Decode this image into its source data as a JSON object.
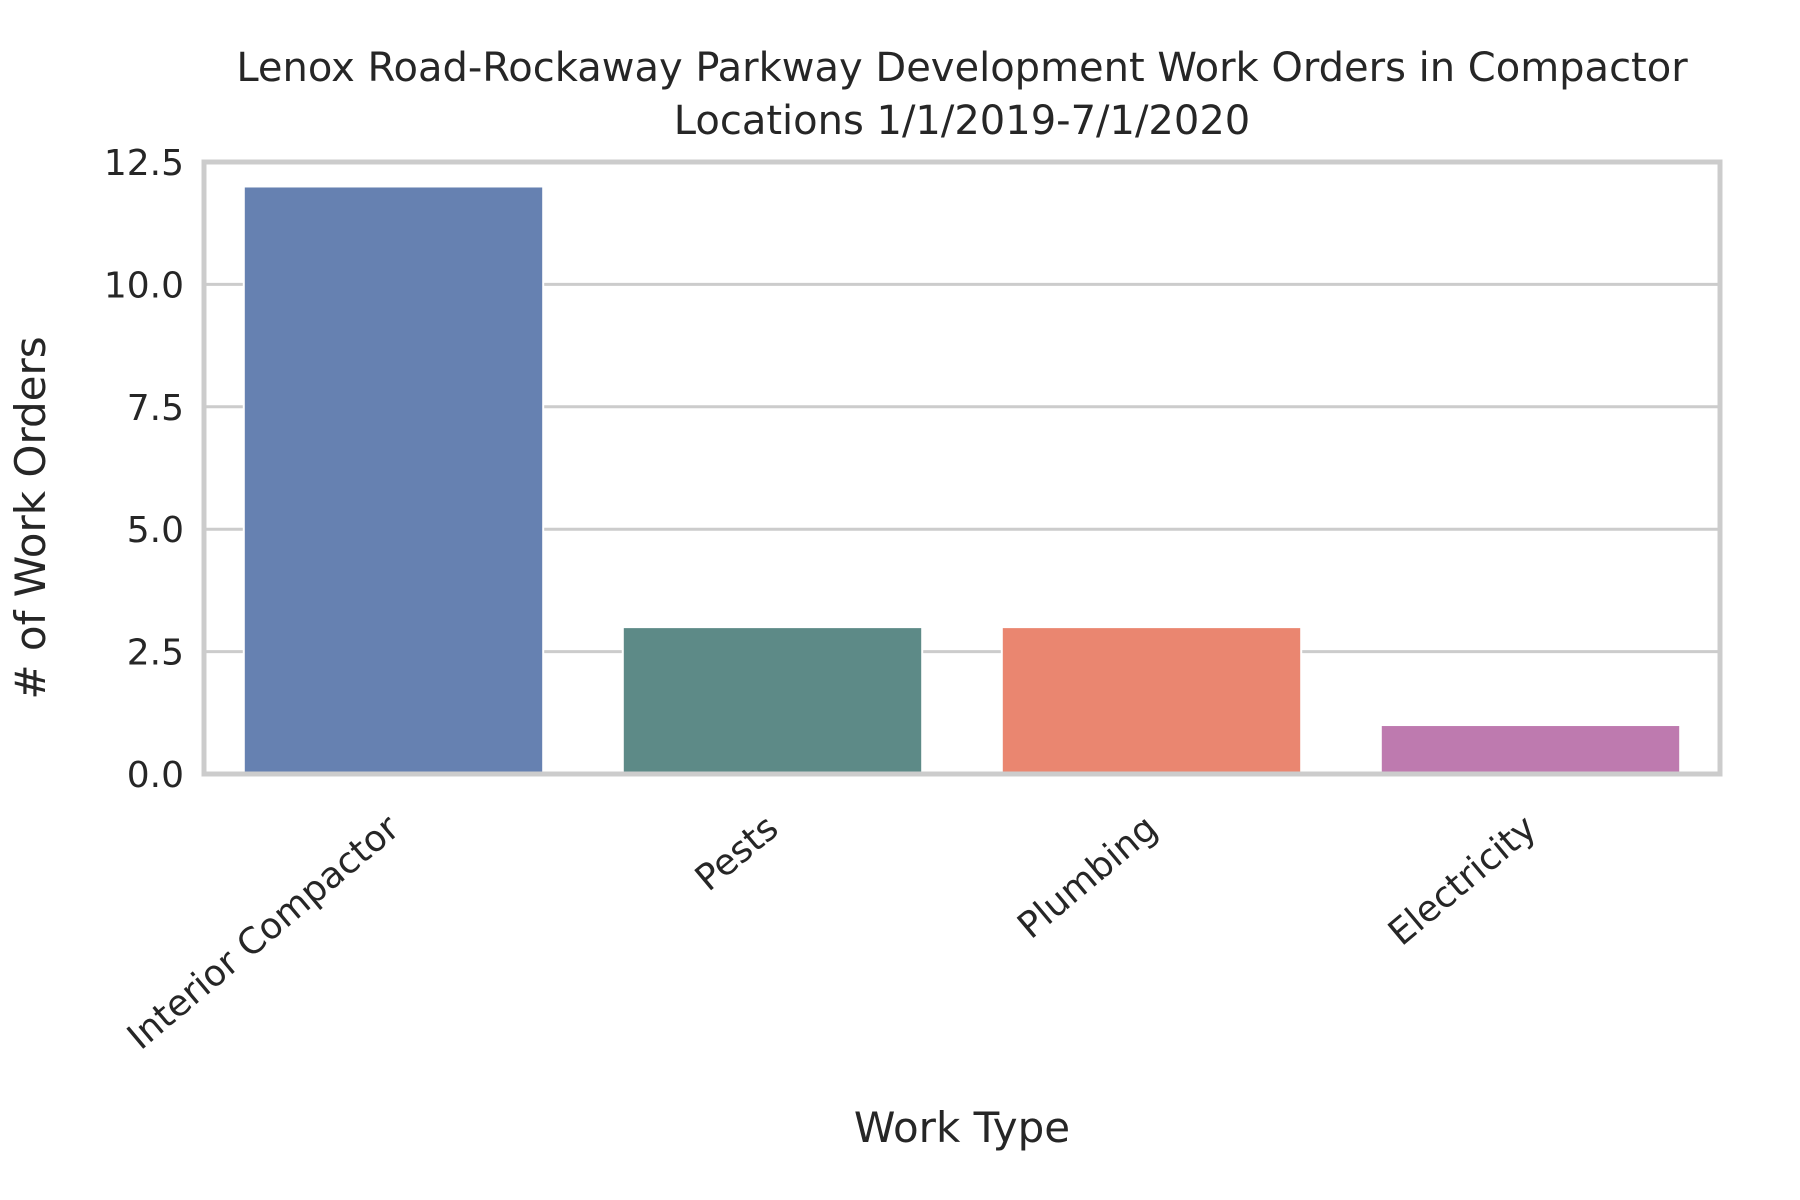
{
  "chart_data": {
    "type": "bar",
    "title": "Lenox Road-Rockaway Parkway Development Work Orders in Compactor Locations 1/1/2019-7/1/2020",
    "title_lines": [
      "Lenox Road-Rockaway Parkway Development Work Orders in Compactor",
      "Locations 1/1/2019-7/1/2020"
    ],
    "xlabel": "Work Type",
    "ylabel": "# of Work Orders",
    "categories": [
      "Interior Compactor",
      "Pests",
      "Plumbing",
      "Electricity"
    ],
    "values": [
      12,
      3,
      3,
      1
    ],
    "colors": [
      "#6681b1",
      "#5d8a87",
      "#ea8670",
      "#be7aaf"
    ],
    "ylim": [
      0,
      12.5
    ],
    "yticks": [
      0.0,
      2.5,
      5.0,
      7.5,
      10.0,
      12.5
    ],
    "ytick_labels": [
      "0.0",
      "2.5",
      "5.0",
      "7.5",
      "10.0",
      "12.5"
    ],
    "grid": true,
    "grid_color": "#cccccc",
    "frame_color": "#cccccc",
    "text_color": "#262626"
  }
}
